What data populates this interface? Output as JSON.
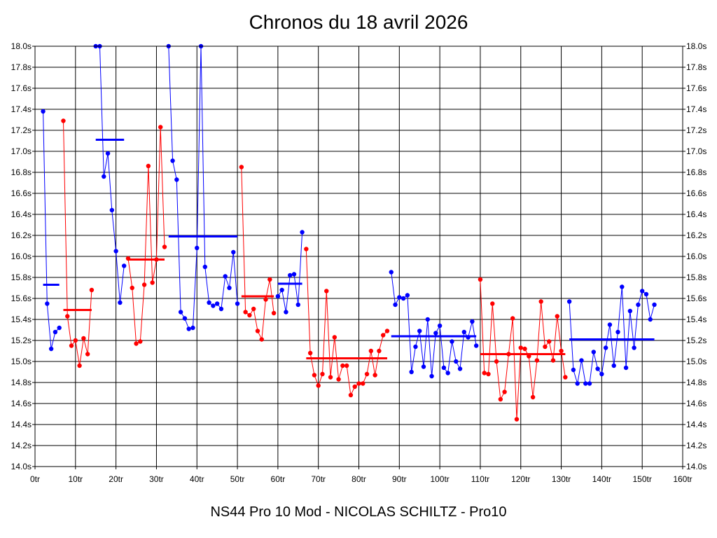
{
  "chart_data": {
    "type": "line",
    "title": "Chronos du 18 avril 2026",
    "footer": "NS44 Pro 10 Mod - NICOLAS SCHILTZ - Pro10",
    "xlim": [
      0,
      160
    ],
    "ylim": [
      14.0,
      18.0
    ],
    "x_ticks": [
      0,
      10,
      20,
      30,
      40,
      50,
      60,
      70,
      80,
      90,
      100,
      110,
      120,
      130,
      140,
      150,
      160
    ],
    "x_tick_labels": [
      "0tr",
      "10tr",
      "20tr",
      "30tr",
      "40tr",
      "50tr",
      "60tr",
      "70tr",
      "80tr",
      "90tr",
      "100tr",
      "110tr",
      "120tr",
      "130tr",
      "140tr",
      "150tr",
      "160tr"
    ],
    "y_ticks": [
      14.0,
      14.2,
      14.4,
      14.6,
      14.8,
      15.0,
      15.2,
      15.4,
      15.6,
      15.8,
      16.0,
      16.2,
      16.4,
      16.6,
      16.8,
      17.0,
      17.2,
      17.4,
      17.6,
      17.8,
      18.0
    ],
    "y_tick_labels": [
      "14.0s",
      "14.2s",
      "14.4s",
      "14.6s",
      "14.8s",
      "15.0s",
      "15.2s",
      "15.4s",
      "15.6s",
      "15.8s",
      "16.0s",
      "16.2s",
      "16.4s",
      "16.6s",
      "16.8s",
      "17.0s",
      "17.2s",
      "17.4s",
      "17.6s",
      "17.8s",
      "18.0s"
    ],
    "grid": true,
    "colors": {
      "blue": "#0000ff",
      "red": "#ff0000",
      "grid": "#000000",
      "background": "#ffffff"
    },
    "segments": [
      {
        "color": "blue",
        "average": 15.73,
        "avg_x": [
          2,
          6
        ],
        "x": [
          2,
          3,
          4,
          5,
          6
        ],
        "y": [
          17.38,
          15.55,
          15.12,
          15.28,
          15.32
        ]
      },
      {
        "color": "red",
        "average": 15.49,
        "avg_x": [
          7,
          14
        ],
        "x": [
          7,
          8,
          9,
          10,
          11,
          12,
          13,
          14
        ],
        "y": [
          17.29,
          15.43,
          15.15,
          15.2,
          14.96,
          15.22,
          15.07,
          15.68
        ]
      },
      {
        "color": "blue",
        "average": 17.11,
        "avg_x": [
          15,
          22
        ],
        "x": [
          15,
          16,
          17,
          18,
          19,
          20,
          21,
          22
        ],
        "y": [
          18.0,
          18.0,
          16.76,
          16.98,
          16.44,
          16.05,
          15.56,
          15.91
        ]
      },
      {
        "color": "red",
        "average": 15.97,
        "avg_x": [
          23,
          32
        ],
        "x": [
          23,
          24,
          25,
          26,
          27,
          28,
          29,
          30,
          31,
          32
        ],
        "y": [
          15.98,
          15.7,
          15.17,
          15.19,
          15.73,
          16.86,
          15.75,
          15.97,
          17.23,
          16.09
        ]
      },
      {
        "color": "blue",
        "average": 16.19,
        "avg_x": [
          33,
          50
        ],
        "x": [
          33,
          34,
          35,
          36,
          37,
          38,
          39,
          40,
          41,
          42,
          43,
          44,
          45,
          46,
          47,
          48,
          49,
          50
        ],
        "y": [
          18.0,
          16.91,
          16.73,
          15.47,
          15.41,
          15.31,
          15.32,
          16.08,
          18.0,
          15.9,
          15.56,
          15.53,
          15.55,
          15.5,
          15.81,
          15.7,
          16.04,
          15.55
        ]
      },
      {
        "color": "red",
        "average": 15.62,
        "avg_x": [
          51,
          59
        ],
        "x": [
          51,
          52,
          53,
          54,
          55,
          56,
          57,
          58,
          59
        ],
        "y": [
          16.85,
          15.47,
          15.44,
          15.5,
          15.29,
          15.21,
          15.59,
          15.78,
          15.46
        ]
      },
      {
        "color": "blue",
        "average": 15.74,
        "avg_x": [
          60,
          66
        ],
        "x": [
          60,
          61,
          62,
          63,
          64,
          65,
          66
        ],
        "y": [
          15.62,
          15.68,
          15.47,
          15.82,
          15.83,
          15.54,
          16.23
        ]
      },
      {
        "color": "red",
        "average": 15.03,
        "avg_x": [
          67,
          87
        ],
        "x": [
          67,
          68,
          69,
          70,
          71,
          72,
          73,
          74,
          75,
          76,
          77,
          78,
          79,
          80,
          81,
          82,
          83,
          84,
          85,
          86,
          87
        ],
        "y": [
          16.07,
          15.08,
          14.87,
          14.77,
          14.88,
          15.67,
          14.85,
          15.23,
          14.83,
          14.96,
          14.96,
          14.68,
          14.76,
          14.79,
          14.79,
          14.88,
          15.1,
          14.87,
          15.1,
          15.25,
          15.29
        ]
      },
      {
        "color": "blue",
        "average": 15.24,
        "avg_x": [
          88,
          109
        ],
        "x": [
          88,
          89,
          90,
          91,
          92,
          93,
          94,
          95,
          96,
          97,
          98,
          99,
          100,
          101,
          102,
          103,
          104,
          105,
          106,
          107,
          108,
          109
        ],
        "y": [
          15.85,
          15.54,
          15.61,
          15.6,
          15.63,
          14.9,
          15.14,
          15.29,
          14.95,
          15.4,
          14.86,
          15.27,
          15.34,
          14.94,
          14.89,
          15.19,
          15.0,
          14.93,
          15.28,
          15.23,
          15.38,
          15.15
        ]
      },
      {
        "color": "red",
        "average": 15.07,
        "avg_x": [
          110,
          131
        ],
        "x": [
          110,
          111,
          112,
          113,
          114,
          115,
          116,
          117,
          118,
          119,
          120,
          121,
          122,
          123,
          124,
          125,
          126,
          127,
          128,
          129,
          130,
          131
        ],
        "y": [
          15.78,
          14.89,
          14.88,
          15.55,
          15.0,
          14.64,
          14.71,
          15.07,
          15.41,
          14.45,
          15.13,
          15.12,
          15.05,
          14.66,
          15.01,
          15.57,
          15.14,
          15.19,
          15.01,
          15.43,
          15.1,
          14.85
        ]
      },
      {
        "color": "blue",
        "average": 15.21,
        "avg_x": [
          132,
          153
        ],
        "x": [
          132,
          133,
          134,
          135,
          136,
          137,
          138,
          139,
          140,
          141,
          142,
          143,
          144,
          145,
          146,
          147,
          148,
          149,
          150,
          151,
          152,
          153
        ],
        "y": [
          15.57,
          14.92,
          14.79,
          15.01,
          14.79,
          14.79,
          15.09,
          14.93,
          14.88,
          15.13,
          15.35,
          14.96,
          15.28,
          15.71,
          14.94,
          15.48,
          15.13,
          15.54,
          15.67,
          15.64,
          15.4,
          15.54
        ]
      }
    ]
  }
}
